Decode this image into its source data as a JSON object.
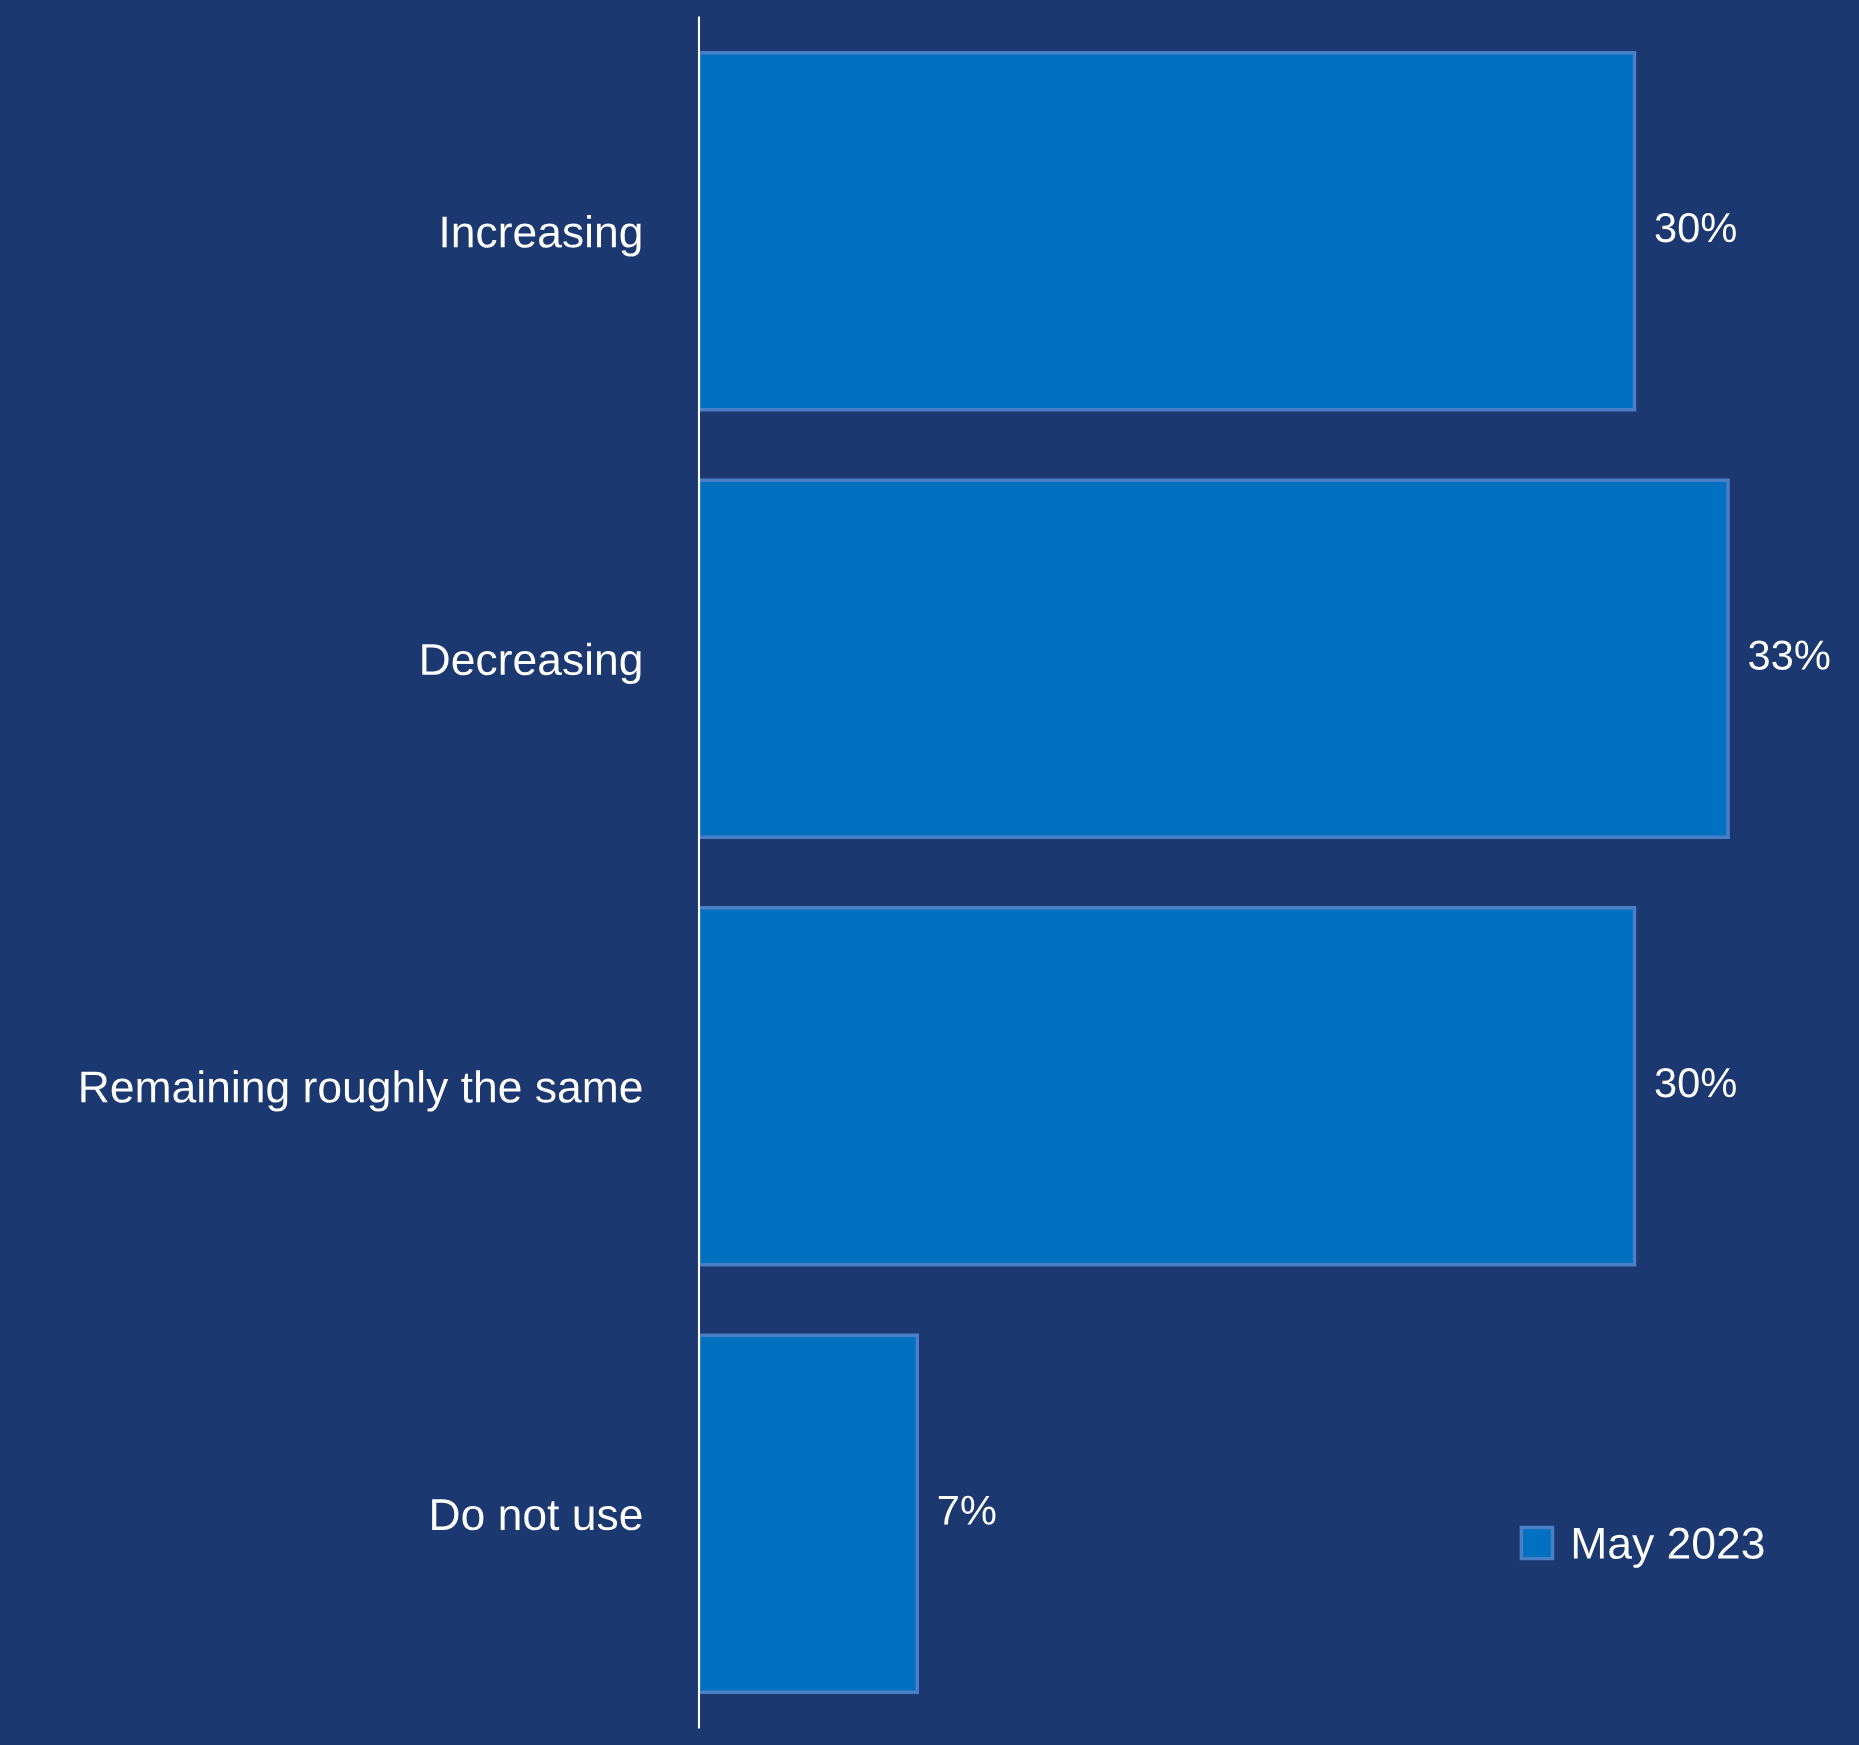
{
  "chart_data": {
    "type": "bar",
    "orientation": "horizontal",
    "categories": [
      "Increasing",
      "Decreasing",
      "Remaining roughly the same",
      "Do not use"
    ],
    "series": [
      {
        "name": "May 2023",
        "color": "#0070c0",
        "values": [
          30,
          33,
          30,
          7
        ],
        "value_labels": [
          "30%",
          "33%",
          "30%",
          "7%"
        ]
      }
    ],
    "legend": "bottom right",
    "grid": false
  }
}
